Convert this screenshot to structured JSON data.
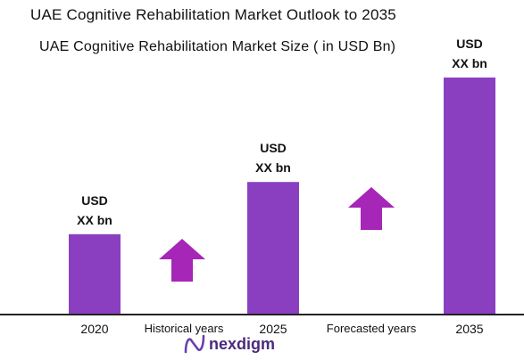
{
  "title": "UAE Cognitive Rehabilitation Market Outlook to 2035",
  "subtitle": "UAE Cognitive Rehabilitation Market Size  ( in USD Bn)",
  "brand": "nexdigm",
  "colors": {
    "bar": "#8a3fc0",
    "arrow": "#a626b7",
    "axis": "#222222"
  },
  "chart_data": {
    "type": "bar",
    "categories": [
      "2020",
      "2025",
      "2035"
    ],
    "values": [
      2.0,
      3.3,
      5.9
    ],
    "data_labels": [
      [
        "USD",
        "XX bn"
      ],
      [
        "USD",
        "XX bn"
      ],
      [
        "USD",
        "XX bn"
      ]
    ],
    "title": "UAE Cognitive Rehabilitation Market Size  ( in USD Bn)",
    "xlabel": "",
    "ylabel": "",
    "ylim": [
      0,
      6.1
    ],
    "grid": false,
    "annotations": [
      {
        "text": "Historical years",
        "between": [
          "2020",
          "2025"
        ],
        "arrow": "up"
      },
      {
        "text": "Forecasted years",
        "between": [
          "2025",
          "2035"
        ],
        "arrow": "up"
      }
    ]
  }
}
